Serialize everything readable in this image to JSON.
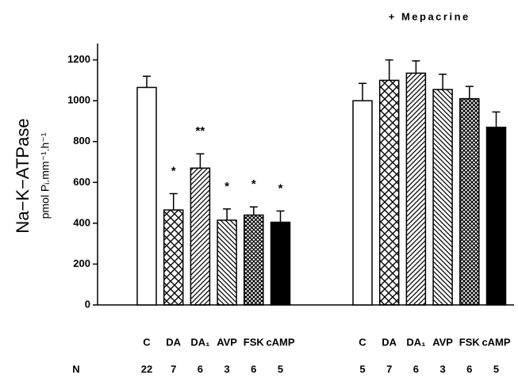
{
  "chart_data": {
    "type": "bar",
    "ylabel": "Na−K−ATPase",
    "ylabel_units": "pmol Pᵢ.mm⁻¹.h⁻¹",
    "ylim": [
      0,
      1280
    ],
    "yticks": [
      0,
      200,
      400,
      600,
      800,
      1000,
      1200
    ],
    "categories": [
      "C",
      "DA",
      "DA₁",
      "AVP",
      "FSK",
      "cAMP"
    ],
    "patterns": [
      "open",
      "crosshatch",
      "diagonal-up",
      "diagonal-down",
      "dense-crosshatch",
      "solid"
    ],
    "n_label": "N",
    "groups": [
      {
        "values": [
          1065,
          465,
          670,
          415,
          440,
          405
        ],
        "errors": [
          55,
          80,
          70,
          55,
          40,
          55
        ],
        "significance": [
          null,
          "*",
          "**",
          "*",
          "*",
          "*"
        ],
        "n": [
          22,
          7,
          6,
          3,
          6,
          5
        ]
      },
      {
        "title": "+ Mepacrine",
        "values": [
          1000,
          1100,
          1135,
          1055,
          1010,
          870
        ],
        "errors": [
          85,
          100,
          60,
          75,
          60,
          75
        ],
        "n": [
          5,
          7,
          6,
          3,
          6,
          5
        ]
      }
    ]
  }
}
